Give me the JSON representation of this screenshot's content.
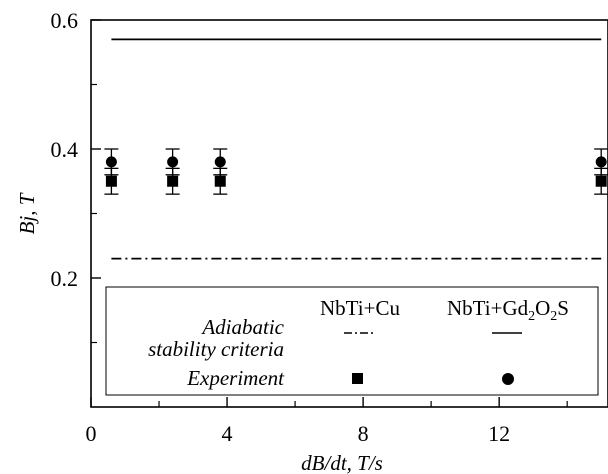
{
  "chart_data": {
    "type": "scatter",
    "xlabel": "dB/dt, T/s",
    "ylabel": "Bj, T",
    "xlim": [
      0,
      15.2
    ],
    "ylim": [
      0,
      0.6
    ],
    "x_ticks": [
      0,
      4,
      8,
      12
    ],
    "x_minor_ticks": [
      2,
      6,
      10,
      14
    ],
    "y_ticks": [
      0.2,
      0.4,
      0.6
    ],
    "y_minor_ticks": [
      0.1,
      0.3,
      0.5
    ],
    "x_tick_labels": [
      "0",
      "4",
      "8",
      "12"
    ],
    "y_tick_labels": [
      "0.2",
      "0.4",
      "0.6"
    ],
    "series": [
      {
        "name": "NbTi+Gd2O2S",
        "marker": "circle",
        "x": [
          0.6,
          2.4,
          3.8,
          15.0
        ],
        "y": [
          0.38,
          0.38,
          0.38,
          0.38
        ],
        "err": [
          0.02,
          0.02,
          0.02,
          0.02
        ]
      },
      {
        "name": "NbTi+Cu",
        "marker": "square",
        "x": [
          0.6,
          2.4,
          3.8,
          15.0
        ],
        "y": [
          0.35,
          0.35,
          0.35,
          0.35
        ],
        "err": [
          0.02,
          0.02,
          0.02,
          0.02
        ]
      }
    ],
    "criteria_lines": [
      {
        "name": "NbTi+Cu",
        "style": "dash-dot",
        "y": 0.23,
        "x": [
          0.6,
          15.0
        ]
      },
      {
        "name": "NbTi+Gd2O2S",
        "style": "solid",
        "y": 0.57,
        "x": [
          0.6,
          15.0
        ]
      }
    ],
    "legend": {
      "placement": "bottom",
      "col1_header": "NbTi+Cu",
      "col2_header_prefix": "NbTi+Gd",
      "col2_header_sub1": "2",
      "col2_header_mid": "O",
      "col2_header_sub2": "2",
      "col2_header_suffix": "S",
      "row1_label_line1": "Adiabatic",
      "row1_label_line2": "stability criteria",
      "row2_label": "Experiment"
    }
  }
}
